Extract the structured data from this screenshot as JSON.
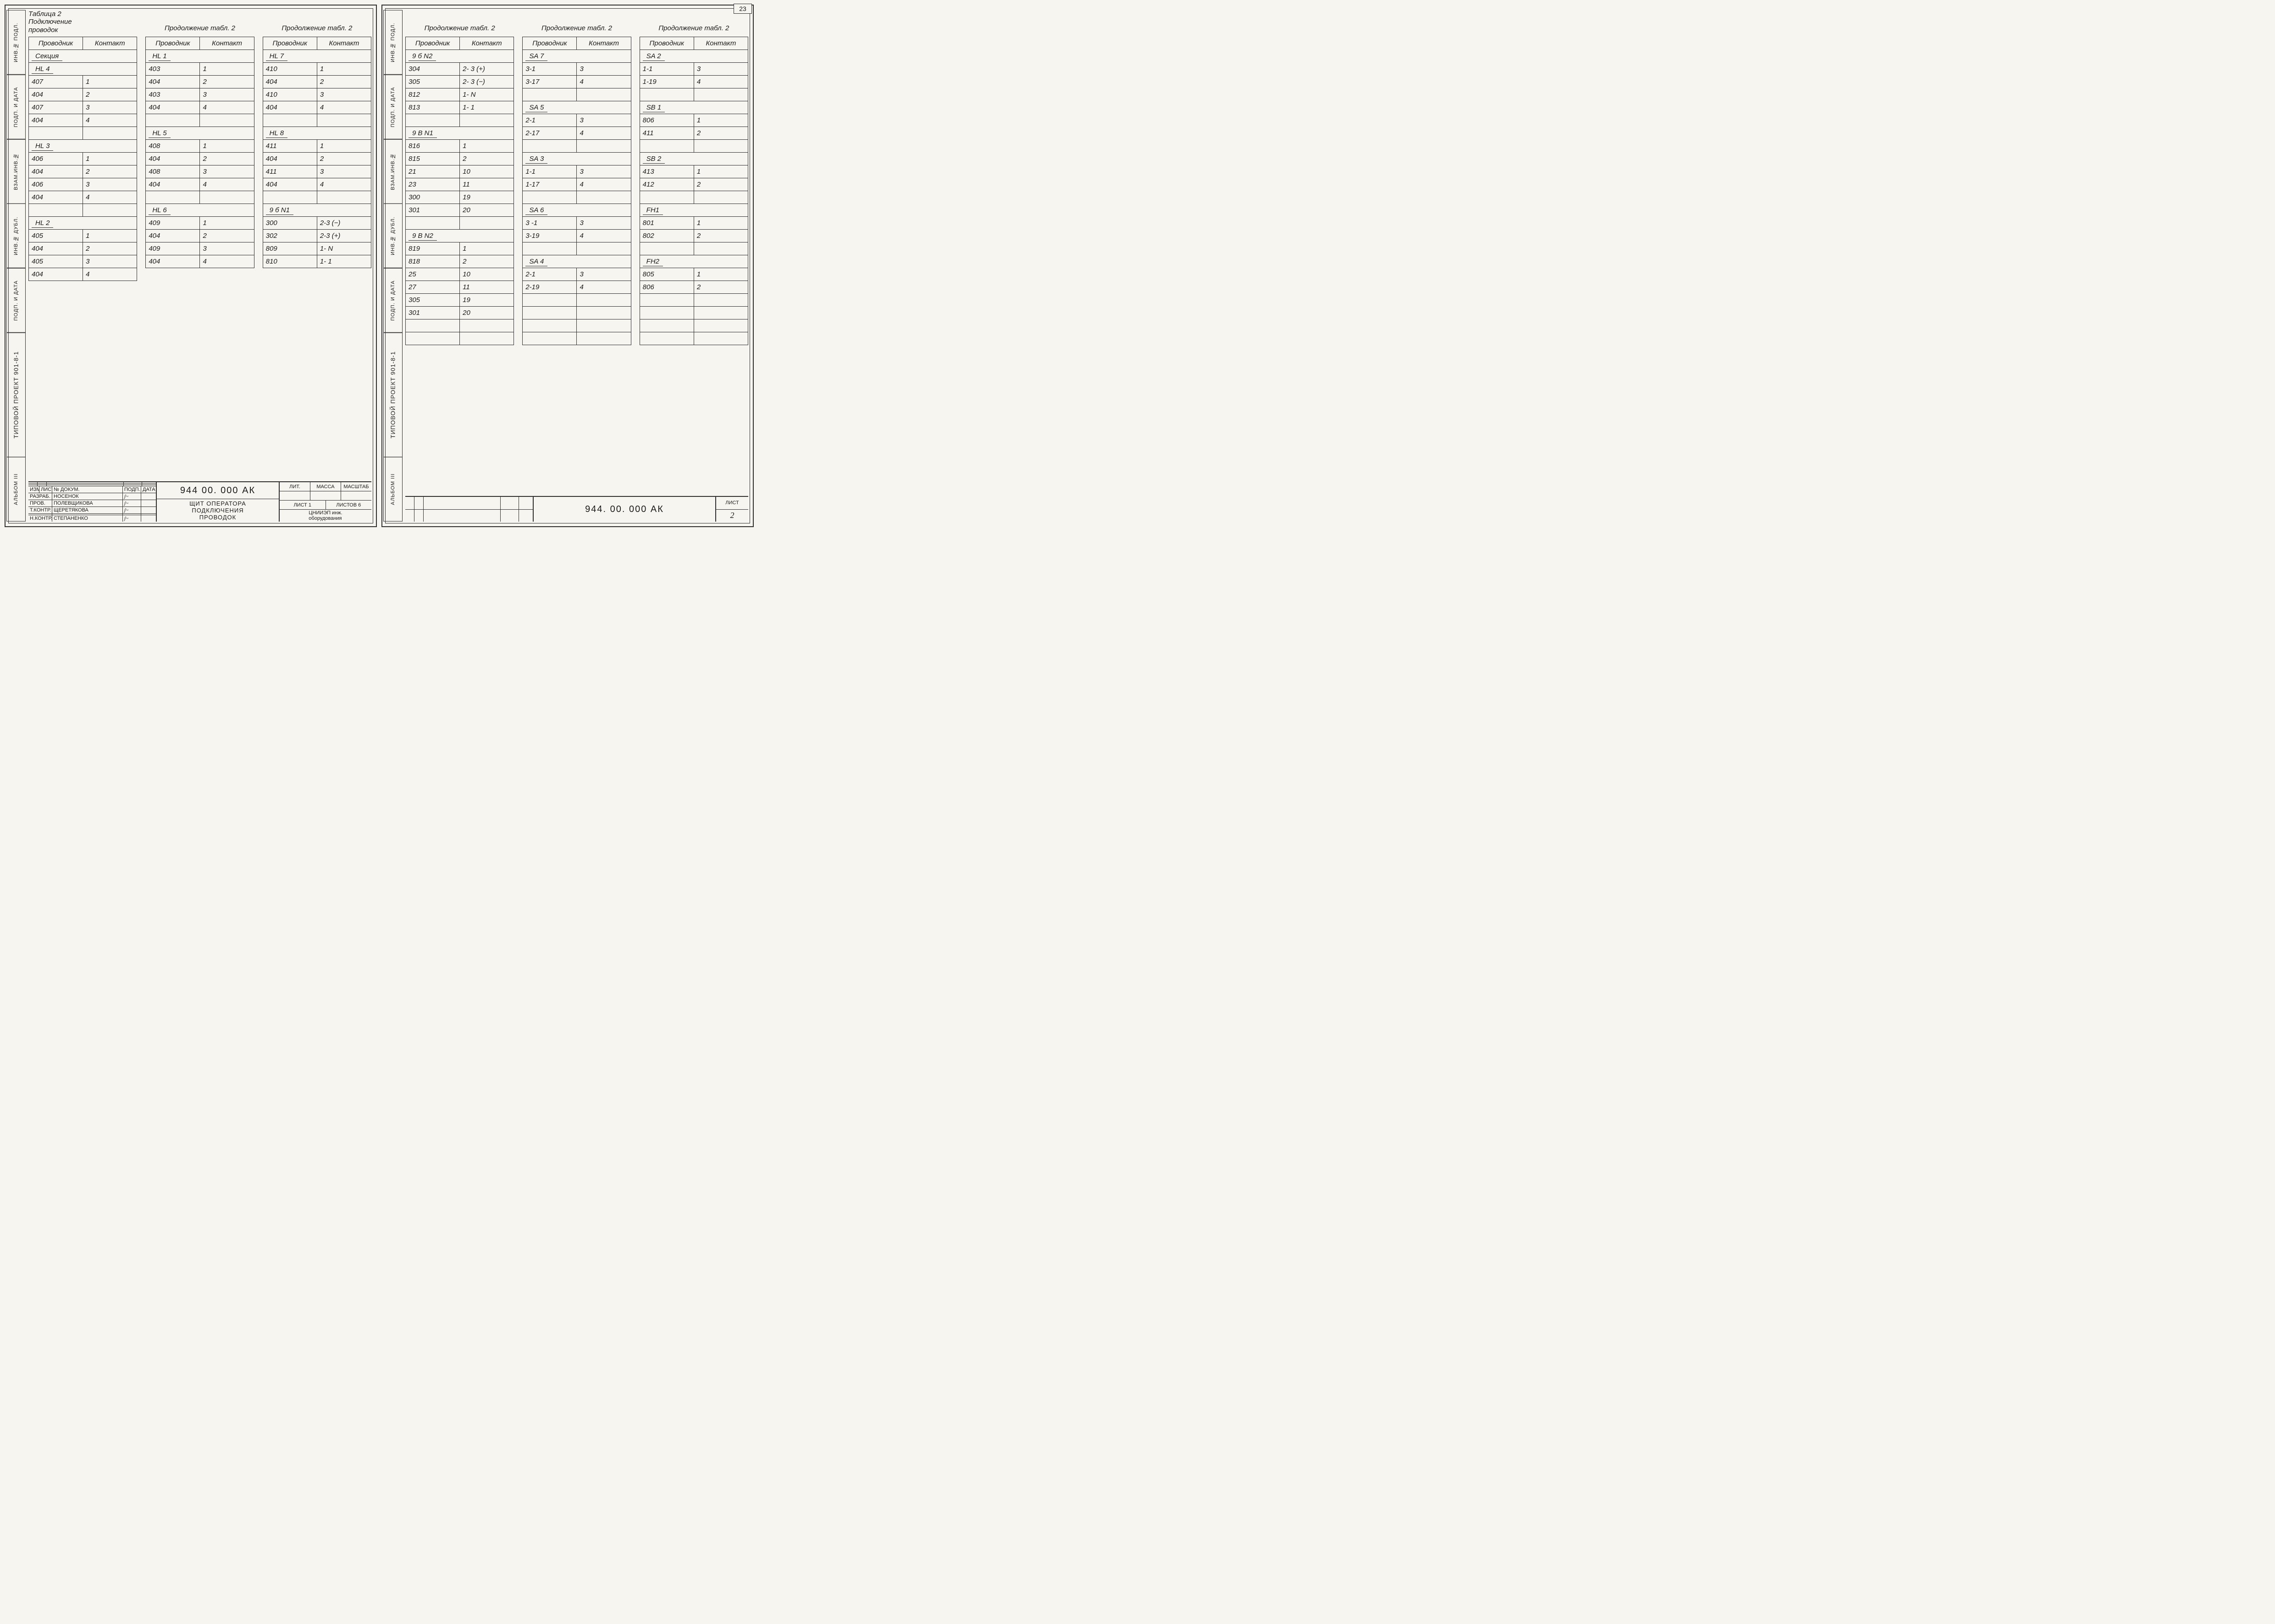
{
  "pageCorner": "23",
  "header": {
    "provodnik": "Проводник",
    "kontakt": "Контакт"
  },
  "mainTitle": "Таблица 2\nПодключение\nпроводок",
  "contTitle": "Продолжение табл. 2",
  "leftPage": {
    "side": {
      "album": "Альбом III",
      "proj": "Типовой проект  901-8-1",
      "cells": [
        "Подп. и дата",
        "Инв.№ дубл.",
        "Взам.инв.№",
        "Подп. и дата",
        "Инв.№ подл."
      ]
    },
    "cols": [
      {
        "titleType": "main",
        "rows": [
          {
            "sub": "Секция"
          },
          {
            "sub": "HL 4"
          },
          {
            "p": "407",
            "k": "1"
          },
          {
            "p": "404",
            "k": "2"
          },
          {
            "p": "407",
            "k": "3"
          },
          {
            "p": "404",
            "k": "4"
          },
          {
            "blank": true
          },
          {
            "sub": "HL 3"
          },
          {
            "p": "406",
            "k": "1"
          },
          {
            "p": "404",
            "k": "2"
          },
          {
            "p": "406",
            "k": "3"
          },
          {
            "p": "404",
            "k": "4"
          },
          {
            "blank": true
          },
          {
            "sub": "HL 2"
          },
          {
            "p": "405",
            "k": "1"
          },
          {
            "p": "404",
            "k": "2"
          },
          {
            "p": "405",
            "k": "3"
          },
          {
            "p": "404",
            "k": "4"
          }
        ]
      },
      {
        "titleType": "cont",
        "rows": [
          {
            "sub": "HL 1"
          },
          {
            "p": "403",
            "k": "1"
          },
          {
            "p": "404",
            "k": "2"
          },
          {
            "p": "403",
            "k": "3"
          },
          {
            "p": "404",
            "k": "4"
          },
          {
            "blank": true
          },
          {
            "sub": "HL 5"
          },
          {
            "p": "408",
            "k": "1"
          },
          {
            "p": "404",
            "k": "2"
          },
          {
            "p": "408",
            "k": "3"
          },
          {
            "p": "404",
            "k": "4"
          },
          {
            "blank": true
          },
          {
            "sub": "HL 6"
          },
          {
            "p": "409",
            "k": "1"
          },
          {
            "p": "404",
            "k": "2"
          },
          {
            "p": "409",
            "k": "3"
          },
          {
            "p": "404",
            "k": "4"
          }
        ]
      },
      {
        "titleType": "cont",
        "rows": [
          {
            "sub": "HL 7"
          },
          {
            "p": "410",
            "k": "1"
          },
          {
            "p": "404",
            "k": "2"
          },
          {
            "p": "410",
            "k": "3"
          },
          {
            "p": "404",
            "k": "4"
          },
          {
            "blank": true
          },
          {
            "sub": "HL 8"
          },
          {
            "p": "411",
            "k": "1"
          },
          {
            "p": "404",
            "k": "2"
          },
          {
            "p": "411",
            "k": "3"
          },
          {
            "p": "404",
            "k": "4"
          },
          {
            "blank": true
          },
          {
            "sub": "9 б N1"
          },
          {
            "p": "300",
            "k": "2-3 (−)"
          },
          {
            "p": "302",
            "k": "2-3 (+)"
          },
          {
            "p": "809",
            "k": "1- N"
          },
          {
            "p": "810",
            "k": "1- 1"
          }
        ]
      }
    ],
    "titleBlock": {
      "docnum": "944 00. 000  АК",
      "docname": "ЩИТ  ОПЕРАТОРА\nПОДКЛЮЧЕНИЯ\nПРОВОДОК",
      "headrow": [
        "ИЗМ",
        "ЛИСТ",
        "№ ДОКУМ.",
        "ПОДП.",
        "ДАТА"
      ],
      "rows": [
        [
          "РАЗРАБ.",
          "НОСЕНОК"
        ],
        [
          "ПРОВ.",
          "ПОЛЕВЩИКОВА"
        ],
        [
          "Т.КОНТР.",
          "ЩЕРЕТЯКОВА"
        ],
        [
          "",
          ""
        ],
        [
          "Н.КОНТР.",
          "СТЕПАНЕНКО"
        ]
      ],
      "right": {
        "r1": [
          "ЛИТ.",
          "МАССА",
          "МАСШТАБ"
        ],
        "r2": [
          "",
          "",
          ""
        ],
        "r3": [
          "ЛИСТ 1",
          "ЛИСТОВ 6"
        ],
        "org": "ЦНИИЭП инж.\nоборудования"
      }
    }
  },
  "rightPage": {
    "side": {
      "album": "Альбом III",
      "proj": "Типовой проект  901-8-1",
      "cells": [
        "Подп. и дата",
        "Инв.№ дубл.",
        "Взам.инв.№",
        "Подп. и дата",
        "Инв.№ подл."
      ]
    },
    "cols": [
      {
        "titleType": "cont",
        "rows": [
          {
            "sub": "9 б N2"
          },
          {
            "p": "304",
            "k": "2- 3 (+)"
          },
          {
            "p": "305",
            "k": "2- 3 (−)"
          },
          {
            "p": "812",
            "k": "1- N"
          },
          {
            "p": "813",
            "k": "1- 1"
          },
          {
            "blank": true
          },
          {
            "sub": "9 В N1"
          },
          {
            "p": "816",
            "k": "1"
          },
          {
            "p": "815",
            "k": "2"
          },
          {
            "p": "21",
            "k": "10"
          },
          {
            "p": "23",
            "k": "11"
          },
          {
            "p": "300",
            "k": "19"
          },
          {
            "p": "301",
            "k": "20"
          },
          {
            "blank": true
          },
          {
            "sub": "9 В N2"
          },
          {
            "p": "819",
            "k": "1"
          },
          {
            "p": "818",
            "k": "2"
          },
          {
            "p": "25",
            "k": "10"
          },
          {
            "p": "27",
            "k": "11"
          },
          {
            "p": "305",
            "k": "19"
          },
          {
            "p": "301",
            "k": "20"
          },
          {
            "blank": true
          },
          {
            "blank": true
          }
        ]
      },
      {
        "titleType": "cont",
        "rows": [
          {
            "sub": "SA 7"
          },
          {
            "p": "3-1",
            "k": "3"
          },
          {
            "p": "3-17",
            "k": "4"
          },
          {
            "blank": true
          },
          {
            "sub": "SA  5"
          },
          {
            "p": "2-1",
            "k": "3"
          },
          {
            "p": "2-17",
            "k": "4"
          },
          {
            "blank": true
          },
          {
            "sub": "SA 3"
          },
          {
            "p": "1-1",
            "k": "3"
          },
          {
            "p": "1-17",
            "k": "4"
          },
          {
            "blank": true
          },
          {
            "sub": "SA 6"
          },
          {
            "p": "3 -1",
            "k": "3"
          },
          {
            "p": "3-19",
            "k": "4"
          },
          {
            "blank": true
          },
          {
            "sub": "SA 4"
          },
          {
            "p": "2-1",
            "k": "3"
          },
          {
            "p": "2-19",
            "k": "4"
          },
          {
            "blank": true
          },
          {
            "blank": true
          },
          {
            "blank": true
          },
          {
            "blank": true
          }
        ]
      },
      {
        "titleType": "cont",
        "rows": [
          {
            "sub": "SA 2"
          },
          {
            "p": "1-1",
            "k": "3"
          },
          {
            "p": "1-19",
            "k": "4"
          },
          {
            "blank": true
          },
          {
            "sub": "SB 1"
          },
          {
            "p": "806",
            "k": "1"
          },
          {
            "p": "411",
            "k": "2"
          },
          {
            "blank": true
          },
          {
            "sub": "SB 2"
          },
          {
            "p": "413",
            "k": "1"
          },
          {
            "p": "412",
            "k": "2"
          },
          {
            "blank": true
          },
          {
            "sub": "FH1"
          },
          {
            "p": "801",
            "k": "1"
          },
          {
            "p": "802",
            "k": "2"
          },
          {
            "blank": true
          },
          {
            "sub": "FH2"
          },
          {
            "p": "805",
            "k": "1"
          },
          {
            "p": "806",
            "k": "2"
          },
          {
            "blank": true
          },
          {
            "blank": true
          },
          {
            "blank": true
          },
          {
            "blank": true
          }
        ]
      }
    ],
    "titleBlock": {
      "docnum": "944. 00. 000  АК",
      "listLabel": "ЛИСТ",
      "listNum": "2"
    }
  }
}
